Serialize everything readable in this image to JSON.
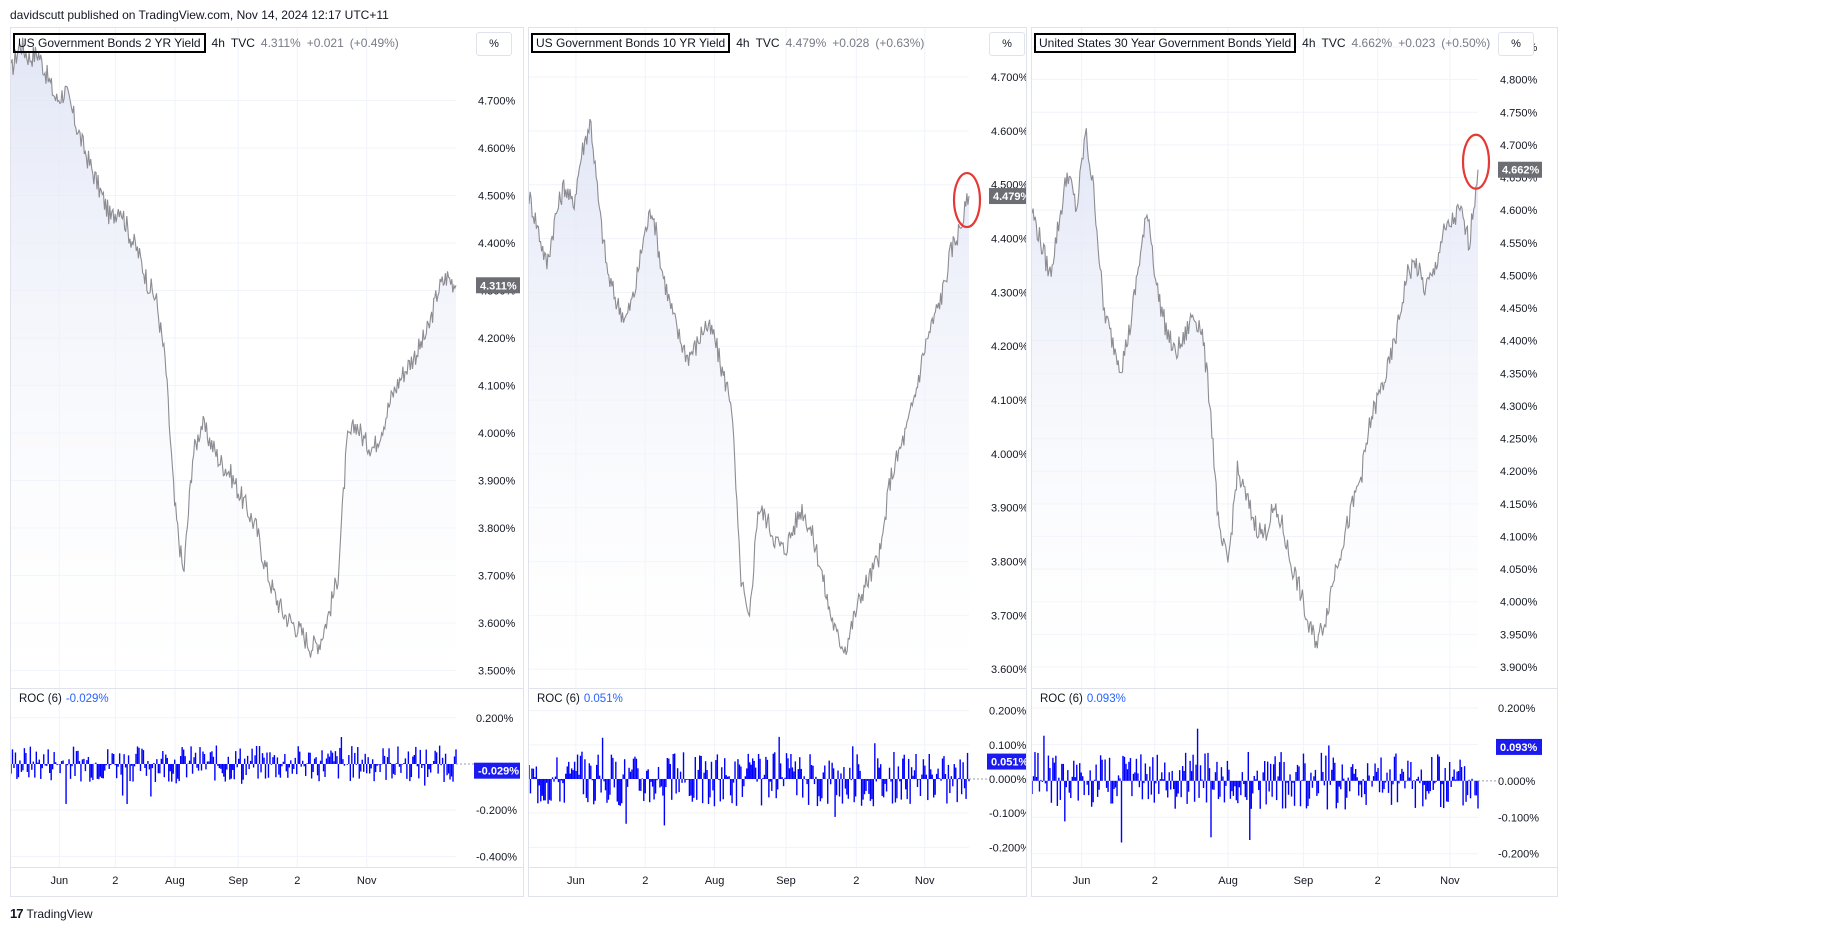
{
  "header": {
    "published": "davidscutt published on TradingView.com, Nov 14, 2024 12:17 UTC+11"
  },
  "footer": {
    "brand": "TradingView"
  },
  "colors": {
    "line": "#8c8c93",
    "area_top": "#dfe4f5",
    "roc": "#0000ff",
    "label_bg": "#6d6e74",
    "roc_label_bg": "#1b1bf0",
    "annot": "#e53935"
  },
  "chart_data": [
    {
      "type": "line",
      "title": "US Government Bonds 2 YR Yield",
      "interval": "4h",
      "source": "TVC",
      "last": "4.311%",
      "change": "+0.021",
      "change_pct": "(+0.49%)",
      "unit_button": "%",
      "ylim": [
        3.48,
        4.84
      ],
      "ticks": [
        "4.700%",
        "4.600%",
        "4.500%",
        "4.400%",
        "4.300%",
        "4.200%",
        "4.100%",
        "4.000%",
        "3.900%",
        "3.800%",
        "3.700%",
        "3.600%",
        "3.500%"
      ],
      "tick_values": [
        4.7,
        4.6,
        4.5,
        4.4,
        4.3,
        4.2,
        4.1,
        4.0,
        3.9,
        3.8,
        3.7,
        3.6,
        3.5
      ],
      "price_label": "4.311%",
      "price_value": 4.311,
      "x_ticks": [
        "Jun",
        "2",
        "Aug",
        "Sep",
        "2",
        "Nov"
      ],
      "x_tick_pos": [
        0.094,
        0.203,
        0.319,
        0.442,
        0.557,
        0.692
      ],
      "series": [
        {
          "values": [
            4.76,
            4.82,
            4.79,
            4.8,
            4.75,
            4.7,
            4.72,
            4.66,
            4.6,
            4.55,
            4.5,
            4.45,
            4.48,
            4.42,
            4.38,
            4.32,
            4.28,
            4.15,
            3.85,
            3.7,
            3.95,
            4.02,
            3.98,
            3.94,
            3.92,
            3.88,
            3.84,
            3.8,
            3.72,
            3.66,
            3.62,
            3.6,
            3.58,
            3.55,
            3.56,
            3.62,
            3.7,
            3.98,
            4.02,
            3.98,
            3.97,
            4.02,
            4.08,
            4.12,
            4.15,
            4.18,
            4.22,
            4.3,
            4.33,
            4.311
          ]
        }
      ],
      "roc": {
        "label": "ROC (6)",
        "value": "-0.029%",
        "ylim": [
          -0.42,
          0.29
        ],
        "ticks": [
          "0.200%",
          "-0.200%",
          "-0.400%"
        ],
        "tick_values": [
          0.2,
          -0.2,
          -0.4
        ],
        "value_num": -0.029
      }
    },
    {
      "type": "line",
      "title": "US Government Bonds 10 YR Yield",
      "interval": "4h",
      "source": "TVC",
      "last": "4.479%",
      "change": "+0.028",
      "change_pct": "(+0.63%)",
      "unit_button": "%",
      "ylim": [
        3.58,
        4.78
      ],
      "ticks": [
        "4.700%",
        "4.600%",
        "4.500%",
        "4.400%",
        "4.300%",
        "4.200%",
        "4.100%",
        "4.000%",
        "3.900%",
        "3.800%",
        "3.700%",
        "3.600%"
      ],
      "tick_values": [
        4.7,
        4.6,
        4.5,
        4.4,
        4.3,
        4.2,
        4.1,
        4.0,
        3.9,
        3.8,
        3.7,
        3.6
      ],
      "price_label": "4.479%",
      "price_value": 4.479,
      "x_ticks": [
        "Jun",
        "2",
        "Aug",
        "Sep",
        "2",
        "Nov"
      ],
      "x_tick_pos": [
        0.094,
        0.233,
        0.372,
        0.515,
        0.656,
        0.793
      ],
      "series": [
        {
          "values": [
            4.48,
            4.42,
            4.35,
            4.44,
            4.5,
            4.46,
            4.56,
            4.62,
            4.45,
            4.33,
            4.28,
            4.25,
            4.3,
            4.4,
            4.46,
            4.35,
            4.28,
            4.22,
            4.18,
            4.2,
            4.24,
            4.22,
            4.15,
            4.1,
            3.78,
            3.68,
            3.9,
            3.88,
            3.84,
            3.82,
            3.86,
            3.9,
            3.86,
            3.8,
            3.72,
            3.66,
            3.64,
            3.7,
            3.75,
            3.78,
            3.82,
            3.95,
            4.0,
            4.05,
            4.12,
            4.2,
            4.25,
            4.3,
            4.38,
            4.42,
            4.479
          ]
        }
      ],
      "annotation": "circle",
      "roc": {
        "label": "ROC (6)",
        "value": "0.051%",
        "ylim": [
          -0.24,
          0.24
        ],
        "ticks": [
          "0.200%",
          "0.100%",
          "0.000%",
          "-0.100%",
          "-0.200%"
        ],
        "tick_values": [
          0.2,
          0.1,
          0.0,
          -0.1,
          -0.2
        ],
        "value_num": 0.051
      }
    },
    {
      "type": "line",
      "title": "United States 30 Year Government Bonds Yield",
      "interval": "4h",
      "source": "TVC",
      "last": "4.662%",
      "change": "+0.023",
      "change_pct": "(+0.50%)",
      "unit_button": "%",
      "ylim": [
        3.88,
        4.87
      ],
      "ticks": [
        "4.850%",
        "4.800%",
        "4.750%",
        "4.700%",
        "4.650%",
        "4.600%",
        "4.550%",
        "4.500%",
        "4.450%",
        "4.400%",
        "4.350%",
        "4.300%",
        "4.250%",
        "4.200%",
        "4.150%",
        "4.100%",
        "4.050%",
        "4.000%",
        "3.950%",
        "3.900%"
      ],
      "tick_values": [
        4.85,
        4.8,
        4.75,
        4.7,
        4.65,
        4.6,
        4.55,
        4.5,
        4.45,
        4.4,
        4.35,
        4.3,
        4.25,
        4.2,
        4.15,
        4.1,
        4.05,
        4.0,
        3.95,
        3.9
      ],
      "price_label": "4.662%",
      "price_value": 4.662,
      "x_ticks": [
        "Jun",
        "2",
        "Aug",
        "Sep",
        "2",
        "Nov"
      ],
      "x_tick_pos": [
        0.094,
        0.233,
        0.372,
        0.515,
        0.656,
        0.793
      ],
      "series": [
        {
          "values": [
            4.6,
            4.55,
            4.5,
            4.58,
            4.66,
            4.6,
            4.72,
            4.62,
            4.45,
            4.4,
            4.36,
            4.42,
            4.52,
            4.6,
            4.48,
            4.42,
            4.38,
            4.4,
            4.44,
            4.42,
            4.3,
            4.1,
            4.06,
            4.2,
            4.16,
            4.12,
            4.1,
            4.14,
            4.12,
            4.06,
            4.02,
            3.96,
            3.94,
            3.98,
            4.05,
            4.1,
            4.15,
            4.2,
            4.28,
            4.32,
            4.36,
            4.42,
            4.5,
            4.52,
            4.48,
            4.5,
            4.56,
            4.58,
            4.6,
            4.55,
            4.662
          ]
        }
      ],
      "annotation": "circle",
      "roc": {
        "label": "ROC (6)",
        "value": "0.093%",
        "ylim": [
          -0.22,
          0.23
        ],
        "ticks": [
          "0.200%",
          "0.100%",
          "0.000%",
          "-0.100%",
          "-0.200%"
        ],
        "tick_values": [
          0.2,
          0.1,
          0.0,
          -0.1,
          -0.2
        ],
        "value_num": 0.093
      }
    }
  ]
}
